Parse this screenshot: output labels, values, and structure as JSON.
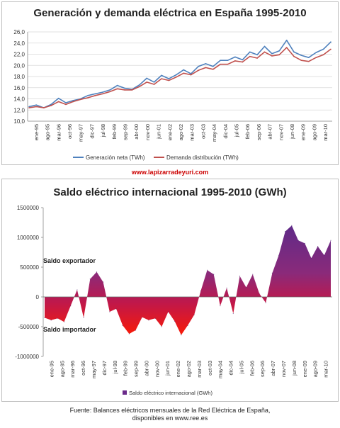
{
  "chart_data": [
    {
      "type": "line",
      "title": "Generación y demanda eléctrica en España 1995-2010",
      "xlabel": "",
      "ylabel": "",
      "ylim": [
        10.0,
        26.0
      ],
      "yticks": [
        "10,0",
        "12,0",
        "14,0",
        "16,0",
        "18,0",
        "20,0",
        "22,0",
        "24,0",
        "26,0"
      ],
      "grid": true,
      "legend_position": "bottom",
      "x_tick_labels": [
        "ene-95",
        "ago-95",
        "mar-96",
        "oct-96",
        "may-97",
        "dic-97",
        "jul-98",
        "feb-99",
        "sep-99",
        "abr-00",
        "nov-00",
        "jun-01",
        "ene-02",
        "ago-02",
        "mar-03",
        "oct-03",
        "may-04",
        "dic-04",
        "jul-05",
        "feb-06",
        "sep-06",
        "abr-07",
        "nov-07",
        "jun-08",
        "ene-09",
        "ago-09",
        "mar-10"
      ],
      "series": [
        {
          "name": "Generación neta (TWh)",
          "color": "#4f81bd",
          "values": [
            12.6,
            12.9,
            12.4,
            13.0,
            14.1,
            13.3,
            13.7,
            14.0,
            14.6,
            14.9,
            15.2,
            15.6,
            16.4,
            15.9,
            15.7,
            16.5,
            17.7,
            17.0,
            18.2,
            17.6,
            18.3,
            19.2,
            18.5,
            19.8,
            20.3,
            19.8,
            20.9,
            20.9,
            21.5,
            21.0,
            22.4,
            21.9,
            23.4,
            22.1,
            22.6,
            24.5,
            22.4,
            21.8,
            21.4,
            22.3,
            22.9,
            24.2
          ]
        },
        {
          "name": "Demanda distribución (TWh)",
          "color": "#c0504d",
          "values": [
            12.4,
            12.6,
            12.4,
            12.8,
            13.5,
            13.0,
            13.5,
            13.9,
            14.2,
            14.6,
            14.9,
            15.3,
            15.8,
            15.6,
            15.6,
            16.2,
            17.0,
            16.6,
            17.6,
            17.3,
            17.9,
            18.6,
            18.3,
            19.1,
            19.6,
            19.3,
            20.2,
            20.2,
            20.8,
            20.6,
            21.6,
            21.3,
            22.4,
            21.7,
            21.9,
            23.2,
            21.6,
            20.9,
            20.7,
            21.4,
            21.9,
            22.9
          ]
        }
      ]
    },
    {
      "type": "area",
      "title": "Saldo eléctrico internacional 1995-2010 (GWh)",
      "xlabel": "",
      "ylabel": "",
      "ylim": [
        -1000000,
        1500000
      ],
      "yticks": [
        "-1000000",
        "-500000",
        "0",
        "500000",
        "1000000",
        "1500000"
      ],
      "grid": false,
      "legend_position": "bottom",
      "x_tick_labels": [
        "ene-95",
        "ago-95",
        "mar-96",
        "oct-96",
        "may-97",
        "dic-97",
        "jul-98",
        "feb-99",
        "sep-99",
        "abr-00",
        "nov-00",
        "jun-01",
        "ene-02",
        "ago-02",
        "mar-03",
        "oct-03",
        "may-04",
        "dic-04",
        "jul-05",
        "feb-06",
        "sep-06",
        "abr-07",
        "nov-07",
        "jun-08",
        "ene-09",
        "ago-09",
        "mar-10"
      ],
      "annotations": [
        "Saldo exportador",
        "Saldo importador"
      ],
      "series": [
        {
          "name": "Saldo eléctrico internacional (GWh)",
          "values": [
            -350000,
            -390000,
            -360000,
            -420000,
            -150000,
            120000,
            -350000,
            300000,
            420000,
            250000,
            -250000,
            -200000,
            -480000,
            -620000,
            -560000,
            -340000,
            -390000,
            -360000,
            -500000,
            -250000,
            -410000,
            -640000,
            -480000,
            -300000,
            100000,
            450000,
            380000,
            -150000,
            150000,
            -280000,
            350000,
            160000,
            380000,
            60000,
            -100000,
            400000,
            700000,
            1100000,
            1200000,
            950000,
            900000,
            650000,
            850000,
            700000,
            950000
          ]
        }
      ]
    }
  ],
  "labels": {
    "url": "www.lapizarradeyuri.com",
    "source_line1": "Fuente: Balances eléctricos mensuales de la Red Eléctrica de España,",
    "source_line2": "disponibles en www.ree.es"
  }
}
